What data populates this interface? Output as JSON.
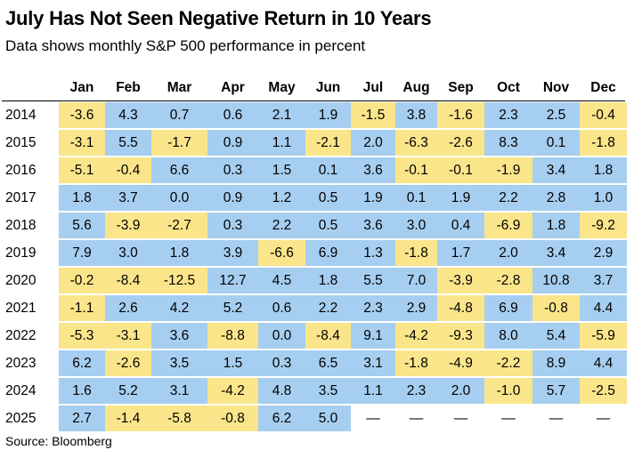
{
  "title": "July Has Not Seen Negative Return in 10 Years",
  "subtitle": "Data shows monthly S&P 500 performance in percent",
  "source": "Source: Bloomberg",
  "colors": {
    "positive": "#a6cef0",
    "negative": "#fbe58a",
    "missing": "#ffffff"
  },
  "chart_data": {
    "type": "heatmap",
    "title": "July Has Not Seen Negative Return in 10 Years",
    "subtitle": "Data shows monthly S&P 500 performance in percent",
    "months": [
      "Jan",
      "Feb",
      "Mar",
      "Apr",
      "May",
      "Jun",
      "Jul",
      "Aug",
      "Sep",
      "Oct",
      "Nov",
      "Dec"
    ],
    "missing_symbol": "—",
    "rows": [
      {
        "year": "2014",
        "values": [
          "-3.6",
          "4.3",
          "0.7",
          "0.6",
          "2.1",
          "1.9",
          "-1.5",
          "3.8",
          "-1.6",
          "2.3",
          "2.5",
          "-0.4"
        ]
      },
      {
        "year": "2015",
        "values": [
          "-3.1",
          "5.5",
          "-1.7",
          "0.9",
          "1.1",
          "-2.1",
          "2.0",
          "-6.3",
          "-2.6",
          "8.3",
          "0.1",
          "-1.8"
        ]
      },
      {
        "year": "2016",
        "values": [
          "-5.1",
          "-0.4",
          "6.6",
          "0.3",
          "1.5",
          "0.1",
          "3.6",
          "-0.1",
          "-0.1",
          "-1.9",
          "3.4",
          "1.8"
        ]
      },
      {
        "year": "2017",
        "values": [
          "1.8",
          "3.7",
          "0.0",
          "0.9",
          "1.2",
          "0.5",
          "1.9",
          "0.1",
          "1.9",
          "2.2",
          "2.8",
          "1.0"
        ]
      },
      {
        "year": "2018",
        "values": [
          "5.6",
          "-3.9",
          "-2.7",
          "0.3",
          "2.2",
          "0.5",
          "3.6",
          "3.0",
          "0.4",
          "-6.9",
          "1.8",
          "-9.2"
        ]
      },
      {
        "year": "2019",
        "values": [
          "7.9",
          "3.0",
          "1.8",
          "3.9",
          "-6.6",
          "6.9",
          "1.3",
          "-1.8",
          "1.7",
          "2.0",
          "3.4",
          "2.9"
        ]
      },
      {
        "year": "2020",
        "values": [
          "-0.2",
          "-8.4",
          "-12.5",
          "12.7",
          "4.5",
          "1.8",
          "5.5",
          "7.0",
          "-3.9",
          "-2.8",
          "10.8",
          "3.7"
        ]
      },
      {
        "year": "2021",
        "values": [
          "-1.1",
          "2.6",
          "4.2",
          "5.2",
          "0.6",
          "2.2",
          "2.3",
          "2.9",
          "-4.8",
          "6.9",
          "-0.8",
          "4.4"
        ]
      },
      {
        "year": "2022",
        "values": [
          "-5.3",
          "-3.1",
          "3.6",
          "-8.8",
          "0.0",
          "-8.4",
          "9.1",
          "-4.2",
          "-9.3",
          "8.0",
          "5.4",
          "-5.9"
        ]
      },
      {
        "year": "2023",
        "values": [
          "6.2",
          "-2.6",
          "3.5",
          "1.5",
          "0.3",
          "6.5",
          "3.1",
          "-1.8",
          "-4.9",
          "-2.2",
          "8.9",
          "4.4"
        ]
      },
      {
        "year": "2024",
        "values": [
          "1.6",
          "5.2",
          "3.1",
          "-4.2",
          "4.8",
          "3.5",
          "1.1",
          "2.3",
          "2.0",
          "-1.0",
          "5.7",
          "-2.5"
        ]
      },
      {
        "year": "2025",
        "values": [
          "2.7",
          "-1.4",
          "-5.8",
          "-0.8",
          "6.2",
          "5.0",
          "—",
          "—",
          "—",
          "—",
          "—",
          "—"
        ]
      }
    ],
    "color_rule": "positive values shaded blue, negative values shaded yellow",
    "grid": false,
    "legend": "none"
  }
}
